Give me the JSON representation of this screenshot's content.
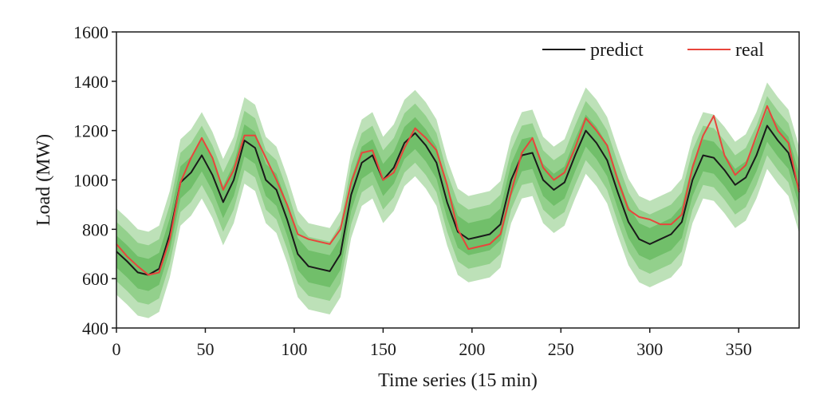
{
  "chart_data": {
    "type": "line",
    "title": "",
    "xlabel": "Time series (15 min)",
    "ylabel": "Load (MW)",
    "xlim": [
      0,
      384
    ],
    "ylim": [
      400,
      1600
    ],
    "xticks": [
      0,
      50,
      100,
      150,
      200,
      250,
      300,
      350
    ],
    "xtick_labels": [
      "0",
      "50",
      "100",
      "150",
      "200",
      "250",
      "300",
      "350"
    ],
    "yticks": [
      400,
      600,
      800,
      1000,
      1200,
      1400,
      1600
    ],
    "ytick_labels": [
      "400",
      "600",
      "800",
      "1000",
      "1200",
      "1400",
      "1600"
    ],
    "grid": false,
    "legend": {
      "placement": "top-right",
      "entries": [
        "predict",
        "real"
      ]
    },
    "colors": {
      "predict": "#1a1a1a",
      "real": "#e8453c",
      "band_outer": "#a7d7a0",
      "band_mid": "#86c97e",
      "band_inner": "#66b95f"
    },
    "x": [
      0,
      6,
      12,
      18,
      24,
      30,
      36,
      42,
      48,
      54,
      60,
      66,
      72,
      78,
      84,
      90,
      96,
      102,
      108,
      114,
      120,
      126,
      132,
      138,
      144,
      150,
      156,
      162,
      168,
      174,
      180,
      186,
      192,
      198,
      204,
      210,
      216,
      222,
      228,
      234,
      240,
      246,
      252,
      258,
      264,
      270,
      276,
      282,
      288,
      294,
      300,
      306,
      312,
      318,
      324,
      330,
      336,
      342,
      348,
      354,
      360,
      366,
      372,
      378,
      384
    ],
    "series": [
      {
        "name": "predict",
        "values": [
          710,
          670,
          625,
          615,
          640,
          780,
          990,
          1030,
          1100,
          1020,
          910,
          1000,
          1160,
          1130,
          1000,
          960,
          840,
          700,
          650,
          640,
          630,
          700,
          940,
          1070,
          1100,
          1000,
          1050,
          1150,
          1190,
          1140,
          1070,
          910,
          790,
          760,
          770,
          780,
          820,
          1000,
          1100,
          1110,
          1000,
          960,
          990,
          1100,
          1200,
          1150,
          1080,
          950,
          830,
          760,
          740,
          760,
          780,
          830,
          1000,
          1100,
          1090,
          1040,
          980,
          1010,
          1100,
          1220,
          1160,
          1110,
          960
        ]
      },
      {
        "name": "real",
        "values": [
          740,
          690,
          650,
          615,
          625,
          760,
          990,
          1090,
          1170,
          1090,
          960,
          1040,
          1180,
          1180,
          1090,
          1000,
          900,
          780,
          760,
          750,
          740,
          800,
          990,
          1110,
          1120,
          1000,
          1030,
          1130,
          1210,
          1170,
          1120,
          980,
          800,
          720,
          730,
          740,
          780,
          950,
          1110,
          1170,
          1050,
          1000,
          1030,
          1130,
          1250,
          1200,
          1140,
          1000,
          880,
          850,
          840,
          820,
          820,
          860,
          1050,
          1180,
          1260,
          1100,
          1020,
          1060,
          1180,
          1300,
          1200,
          1150,
          950
        ]
      }
    ],
    "prediction_interval": {
      "outer_half_width": 175,
      "mid_half_width": 120,
      "inner_half_width": 65
    }
  }
}
